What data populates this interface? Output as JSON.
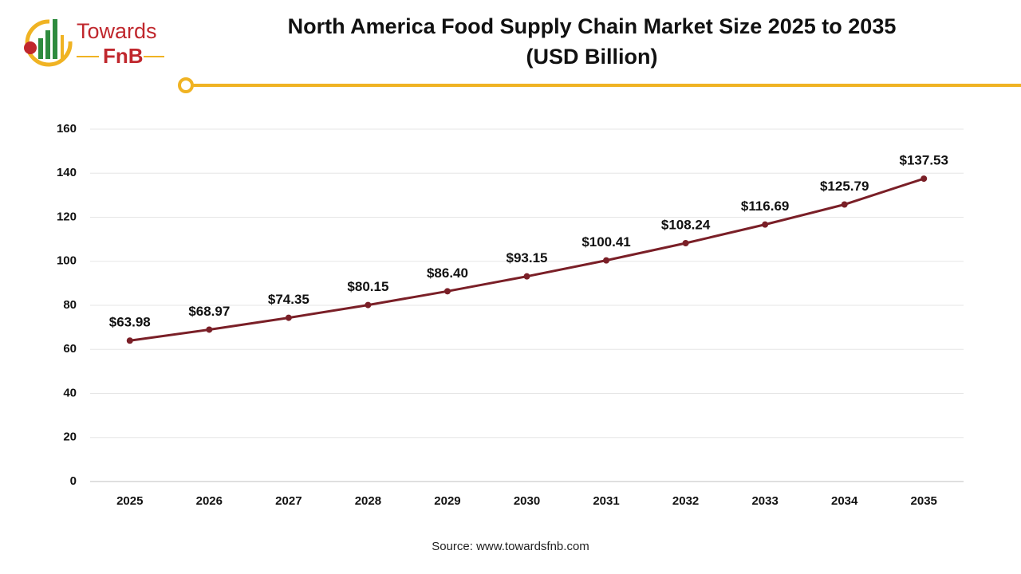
{
  "logo": {
    "line1": "Towards",
    "line2": "FnB"
  },
  "chart_data": {
    "type": "line",
    "title": "North America Food Supply Chain Market Size 2025 to 2035",
    "subtitle": "(USD Billion)",
    "categories": [
      "2025",
      "2026",
      "2027",
      "2028",
      "2029",
      "2030",
      "2031",
      "2032",
      "2033",
      "2034",
      "2035"
    ],
    "values": [
      63.98,
      68.97,
      74.35,
      80.15,
      86.4,
      93.15,
      100.41,
      108.24,
      116.69,
      125.79,
      137.53
    ],
    "value_labels": [
      "$63.98",
      "$68.97",
      "$74.35",
      "$80.15",
      "$86.40",
      "$93.15",
      "$100.41",
      "$108.24",
      "$116.69",
      "$125.79",
      "$137.53"
    ],
    "color": "#7a1f27",
    "ylim": [
      0,
      160
    ],
    "yticks": [
      0,
      20,
      40,
      60,
      80,
      100,
      120,
      140,
      160
    ],
    "grid": true,
    "source": "Source: www.towardsfnb.com"
  }
}
